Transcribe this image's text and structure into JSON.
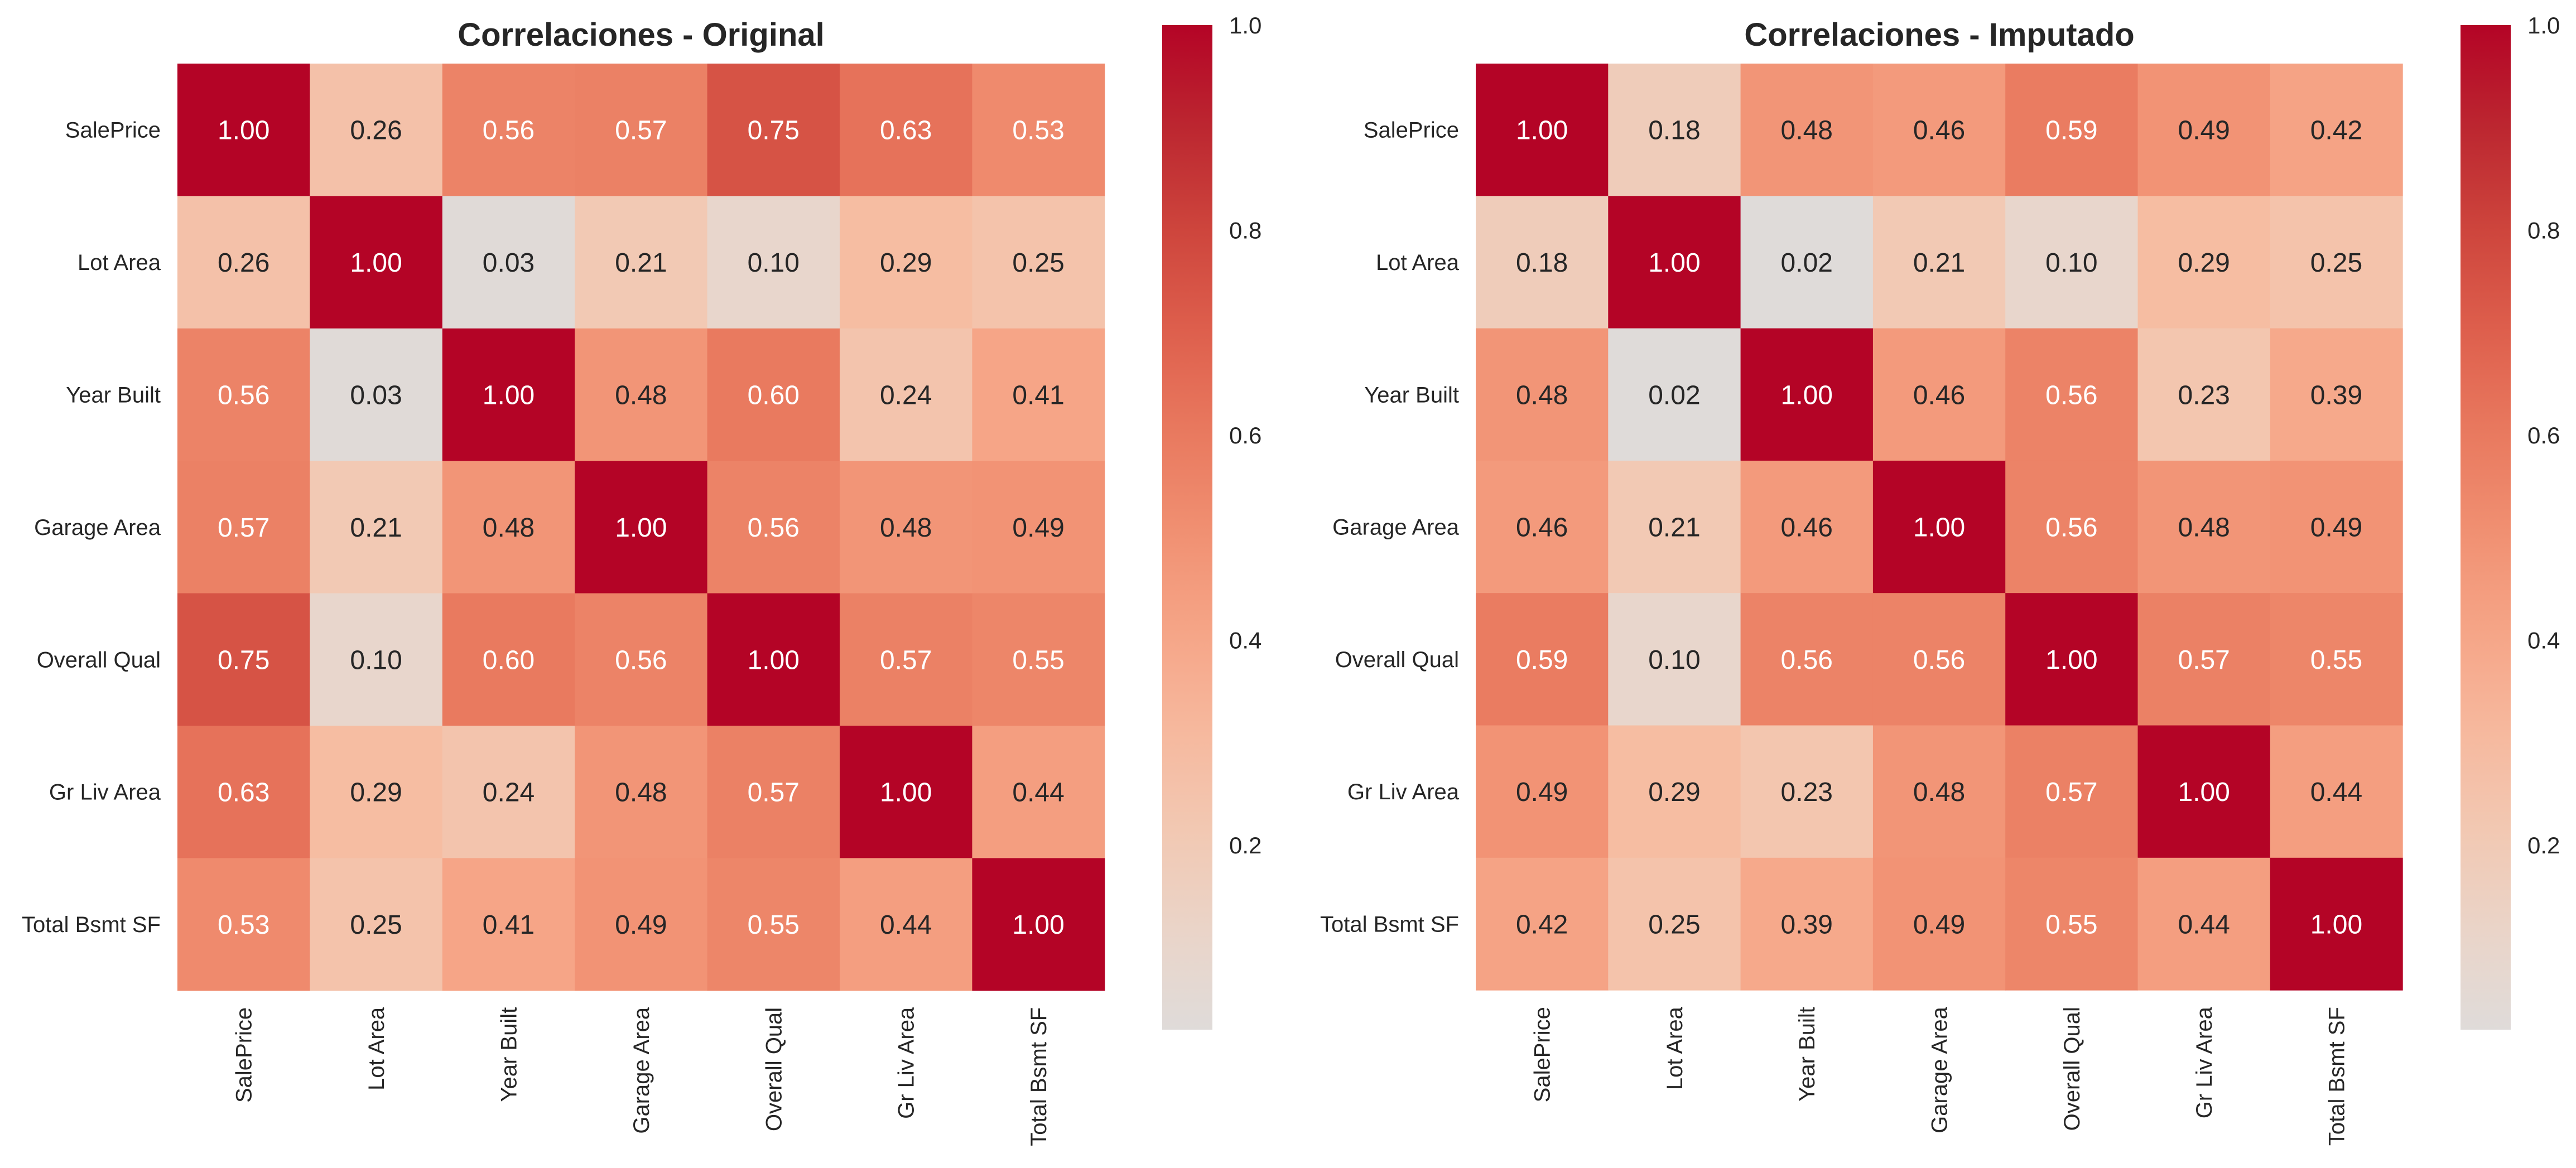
{
  "chart_data": [
    {
      "type": "heatmap",
      "title": "Correlaciones - Original",
      "xlabel": "",
      "ylabel": "",
      "x_tick_labels": [
        "SalePrice",
        "Lot Area",
        "Year Built",
        "Garage Area",
        "Overall Qual",
        "Gr Liv Area",
        "Total Bsmt SF"
      ],
      "y_tick_labels": [
        "SalePrice",
        "Lot Area",
        "Year Built",
        "Garage Area",
        "Overall Qual",
        "Gr Liv Area",
        "Total Bsmt SF"
      ],
      "values": [
        [
          1.0,
          0.26,
          0.56,
          0.57,
          0.75,
          0.63,
          0.53
        ],
        [
          0.26,
          1.0,
          0.03,
          0.21,
          0.1,
          0.29,
          0.25
        ],
        [
          0.56,
          0.03,
          1.0,
          0.48,
          0.6,
          0.24,
          0.41
        ],
        [
          0.57,
          0.21,
          0.48,
          1.0,
          0.56,
          0.48,
          0.49
        ],
        [
          0.75,
          0.1,
          0.6,
          0.56,
          1.0,
          0.57,
          0.55
        ],
        [
          0.63,
          0.29,
          0.24,
          0.48,
          0.57,
          1.0,
          0.44
        ],
        [
          0.53,
          0.25,
          0.41,
          0.49,
          0.55,
          0.44,
          1.0
        ]
      ],
      "annotation_format": "0.00",
      "colormap": "coolwarm (centered at 0)",
      "colorbar": {
        "range": [
          0.02,
          1.0
        ],
        "ticks": [
          0.2,
          0.4,
          0.6,
          0.8,
          1.0
        ],
        "tick_labels": [
          "0.2",
          "0.4",
          "0.6",
          "0.8",
          "1.0"
        ],
        "placement": "right"
      },
      "grid": false
    },
    {
      "type": "heatmap",
      "title": "Correlaciones - Imputado",
      "xlabel": "",
      "ylabel": "",
      "x_tick_labels": [
        "SalePrice",
        "Lot Area",
        "Year Built",
        "Garage Area",
        "Overall Qual",
        "Gr Liv Area",
        "Total Bsmt SF"
      ],
      "y_tick_labels": [
        "SalePrice",
        "Lot Area",
        "Year Built",
        "Garage Area",
        "Overall Qual",
        "Gr Liv Area",
        "Total Bsmt SF"
      ],
      "values": [
        [
          1.0,
          0.18,
          0.48,
          0.46,
          0.59,
          0.49,
          0.42
        ],
        [
          0.18,
          1.0,
          0.02,
          0.21,
          0.1,
          0.29,
          0.25
        ],
        [
          0.48,
          0.02,
          1.0,
          0.46,
          0.56,
          0.23,
          0.39
        ],
        [
          0.46,
          0.21,
          0.46,
          1.0,
          0.56,
          0.48,
          0.49
        ],
        [
          0.59,
          0.1,
          0.56,
          0.56,
          1.0,
          0.57,
          0.55
        ],
        [
          0.49,
          0.29,
          0.23,
          0.48,
          0.57,
          1.0,
          0.44
        ],
        [
          0.42,
          0.25,
          0.39,
          0.49,
          0.55,
          0.44,
          1.0
        ]
      ],
      "annotation_format": "0.00",
      "colormap": "coolwarm (centered at 0)",
      "colorbar": {
        "range": [
          0.02,
          1.0
        ],
        "ticks": [
          0.2,
          0.4,
          0.6,
          0.8,
          1.0
        ],
        "tick_labels": [
          "0.2",
          "0.4",
          "0.6",
          "0.8",
          "1.0"
        ],
        "placement": "right"
      },
      "grid": false
    }
  ],
  "colors": {
    "low": "#dddcdc",
    "high": "#b40426",
    "text_dark": "#262626",
    "text_light": "#ffffff"
  }
}
